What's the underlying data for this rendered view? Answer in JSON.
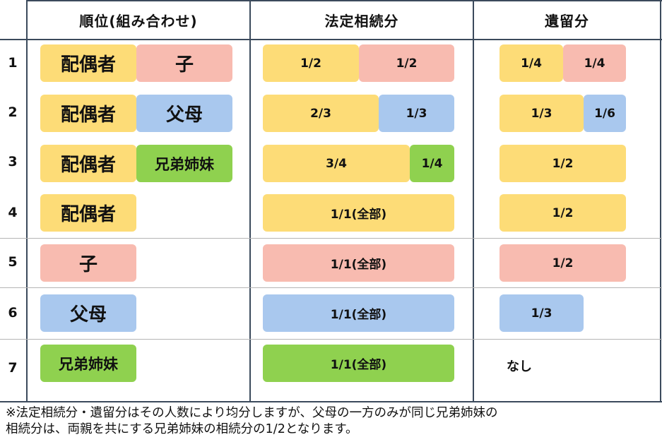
{
  "headers": {
    "rank": "順位(組み合わせ)",
    "legal": "法定相続分",
    "reserved": "遺留分"
  },
  "rows": [
    {
      "num": "1",
      "heirs": [
        "配偶者",
        "子"
      ],
      "legal": [
        "1/2",
        "1/2"
      ],
      "reserved": [
        "1/4",
        "1/4"
      ]
    },
    {
      "num": "2",
      "heirs": [
        "配偶者",
        "父母"
      ],
      "legal": [
        "2/3",
        "1/3"
      ],
      "reserved": [
        "1/3",
        "1/6"
      ]
    },
    {
      "num": "3",
      "heirs": [
        "配偶者",
        "兄弟姉妹"
      ],
      "legal": [
        "3/4",
        "1/4"
      ],
      "reserved": [
        "1/2"
      ]
    },
    {
      "num": "4",
      "heirs": [
        "配偶者"
      ],
      "legal": [
        "1/1(全部)"
      ],
      "reserved": [
        "1/2"
      ]
    },
    {
      "num": "5",
      "heirs": [
        "子"
      ],
      "legal": [
        "1/1(全部)"
      ],
      "reserved": [
        "1/2"
      ]
    },
    {
      "num": "6",
      "heirs": [
        "父母"
      ],
      "legal": [
        "1/1(全部)"
      ],
      "reserved": [
        "1/3"
      ]
    },
    {
      "num": "7",
      "heirs": [
        "兄弟姉妹"
      ],
      "legal": [
        "1/1(全部)"
      ],
      "reserved_text": "なし"
    }
  ],
  "colors": {
    "spouse": "#fddc77",
    "child": "#f8bbb0",
    "parents": "#a9c8ee",
    "siblings": "#8fd14f"
  },
  "note": {
    "line1": "※法定相続分・遺留分はその人数により均分しますが、父母の一方のみが同じ兄弟姉妹の",
    "line2": "相続分は、両親を共にする兄弟姉妹の相続分の1/2となります。"
  }
}
